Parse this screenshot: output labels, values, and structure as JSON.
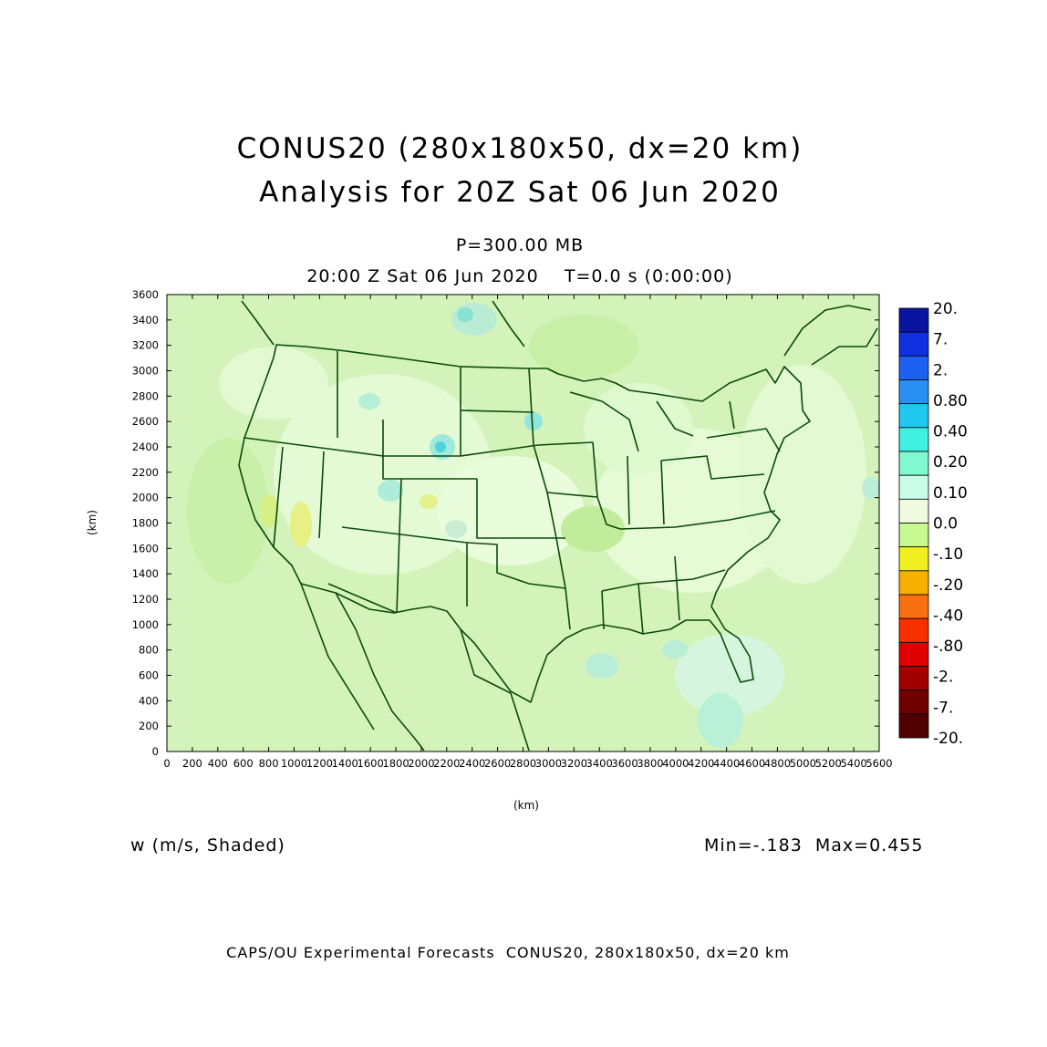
{
  "title": {
    "line1": "CONUS20 (280x180x50, dx=20 km)",
    "line2": "Analysis for 20Z Sat 06 Jun 2020"
  },
  "subtitle": {
    "level": "P=300.00 MB",
    "time": "20:00 Z Sat 06 Jun 2020    T=0.0 s (0:00:00)"
  },
  "variable_label": "w (m/s, Shaded)",
  "minmax": "Min=-.183  Max=0.455",
  "footer": "CAPS/OU Experimental Forecasts  CONUS20, 280x180x50, dx=20 km",
  "map": {
    "x_axis_label": "(km)",
    "y_axis_label": "(km)",
    "x_ticks": [
      "0",
      "200",
      "400",
      "600",
      "800",
      "1000",
      "1200",
      "1400",
      "1600",
      "1800",
      "2000",
      "2200",
      "2400",
      "2600",
      "2800",
      "3000",
      "3200",
      "3400",
      "3600",
      "3800",
      "4000",
      "4200",
      "4400",
      "4600",
      "4800",
      "5000",
      "5200",
      "5400",
      "5600"
    ],
    "y_ticks": [
      "0",
      "200",
      "400",
      "600",
      "800",
      "1000",
      "1200",
      "1400",
      "1600",
      "1800",
      "2000",
      "2200",
      "2400",
      "2600",
      "2800",
      "3000",
      "3200",
      "3400",
      "3600"
    ],
    "x_range_km": [
      0,
      5600
    ],
    "y_range_km": [
      0,
      3600
    ],
    "background_color": "#d8f5c0",
    "boundary_color": "#0a4a0a"
  },
  "colorbar": {
    "labels": [
      "20.",
      "7.",
      "2.",
      "0.80",
      "0.40",
      "0.20",
      "0.10",
      "0.0",
      "-.10",
      "-.20",
      "-.40",
      "-.80",
      "-2.",
      "-7.",
      "-20."
    ],
    "colors": [
      "#0a14a0",
      "#1030e0",
      "#1e60f0",
      "#2890f0",
      "#20c8f0",
      "#40f0e0",
      "#80f8d0",
      "#c8fce8",
      "#f0fce0",
      "#c8f890",
      "#f0f020",
      "#f8b000",
      "#f87010",
      "#f83000",
      "#e00000",
      "#a00000",
      "#700000",
      "#500000"
    ]
  }
}
